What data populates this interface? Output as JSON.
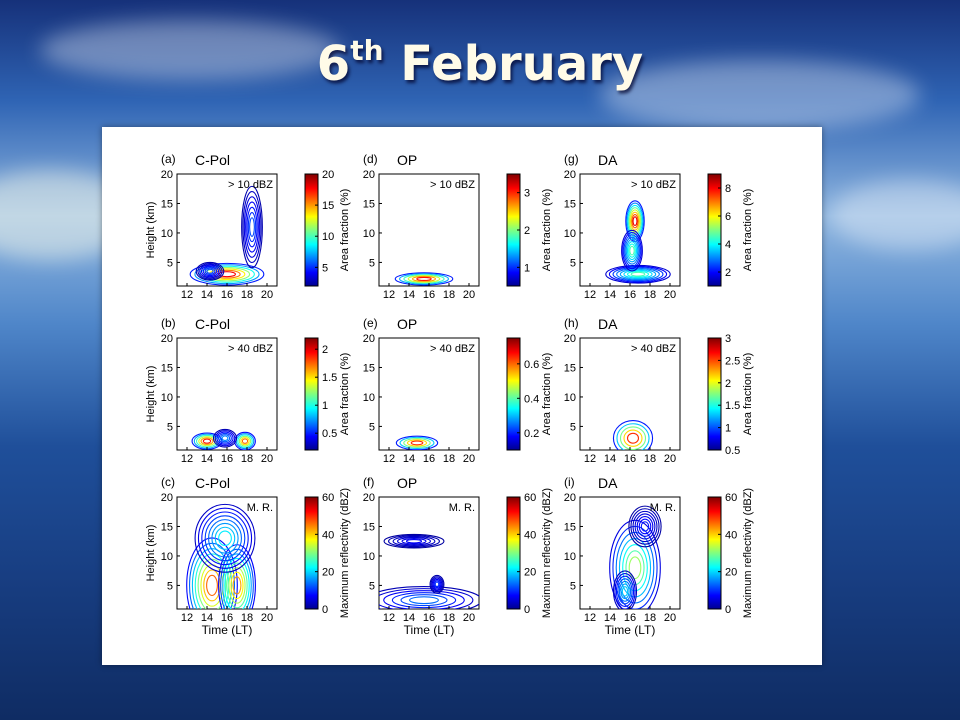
{
  "slide": {
    "title_main": "6",
    "title_sup": "th",
    "title_rest": " February"
  },
  "colors": {
    "background": "#2a5aa8",
    "title": "#fffbe8",
    "panel": "#ffffff",
    "colormap": [
      "#00008f",
      "#0000ff",
      "#0080ff",
      "#00ffff",
      "#80ff80",
      "#ffff00",
      "#ff8000",
      "#ff0000",
      "#800000"
    ]
  },
  "chart_data": [
    {
      "id": "a",
      "type": "contour",
      "label": "(a)",
      "name": "C-Pol",
      "annotation": "> 10 dBZ",
      "ylabel": "Height (km)",
      "xlabel": "",
      "xticks": [
        "12",
        "14",
        "16",
        "18",
        "20"
      ],
      "yticks": [
        "5",
        "10",
        "15",
        "20"
      ],
      "xlim": [
        11,
        21
      ],
      "ylim": [
        1,
        20
      ],
      "colorbar": {
        "label": "Area fraction (%)",
        "min": 2,
        "max": 20,
        "ticks": [
          "5",
          "10",
          "15",
          "20"
        ],
        "tick_values": [
          5,
          10,
          15,
          20
        ]
      },
      "features": [
        {
          "x": 16,
          "y": 3,
          "sx": 3.2,
          "sy": 1.6,
          "amp": 20
        },
        {
          "x": 18.5,
          "y": 11,
          "sx": 0.9,
          "sy": 6,
          "amp": 6
        },
        {
          "x": 14.3,
          "y": 3.5,
          "sx": 1.2,
          "sy": 1.3,
          "amp": 6
        }
      ],
      "levels": 7
    },
    {
      "id": "b",
      "type": "contour",
      "label": "(b)",
      "name": "C-Pol",
      "annotation": "> 40 dBZ",
      "ylabel": "Height (km)",
      "xlabel": "",
      "xticks": [
        "12",
        "14",
        "16",
        "18",
        "20"
      ],
      "yticks": [
        "5",
        "10",
        "15",
        "20"
      ],
      "xlim": [
        11,
        21
      ],
      "ylim": [
        1,
        20
      ],
      "colorbar": {
        "label": "Area fraction (%)",
        "min": 0.2,
        "max": 2.2,
        "ticks": [
          "0.5",
          "1",
          "1.5",
          "2"
        ],
        "tick_values": [
          0.5,
          1,
          1.5,
          2
        ]
      },
      "features": [
        {
          "x": 14,
          "y": 2.5,
          "sx": 1.3,
          "sy": 1.2,
          "amp": 2.2
        },
        {
          "x": 17.8,
          "y": 2.5,
          "sx": 0.9,
          "sy": 1.3,
          "amp": 2.0
        },
        {
          "x": 15.8,
          "y": 3,
          "sx": 1.0,
          "sy": 1.3,
          "amp": 0.8
        }
      ],
      "levels": 6
    },
    {
      "id": "c",
      "type": "contour",
      "label": "(c)",
      "name": "C-Pol",
      "annotation": "M. R.",
      "ylabel": "Height (km)",
      "xlabel": "Time (LT)",
      "xticks": [
        "12",
        "14",
        "16",
        "18",
        "20"
      ],
      "yticks": [
        "5",
        "10",
        "15",
        "20"
      ],
      "xlim": [
        11,
        21
      ],
      "ylim": [
        1,
        20
      ],
      "colorbar": {
        "label": "Maximum reflectivity (dBZ)",
        "min": 0,
        "max": 60,
        "ticks": [
          "0",
          "20",
          "40",
          "60"
        ],
        "tick_values": [
          0,
          20,
          40,
          60
        ]
      },
      "features": [
        {
          "x": 14.5,
          "y": 5,
          "sx": 2.2,
          "sy": 7,
          "amp": 52
        },
        {
          "x": 17,
          "y": 5,
          "sx": 1.6,
          "sy": 6,
          "amp": 48
        },
        {
          "x": 15.8,
          "y": 13,
          "sx": 2.6,
          "sy": 5,
          "amp": 24
        }
      ],
      "levels": 8
    },
    {
      "id": "d",
      "type": "contour",
      "label": "(d)",
      "name": "OP",
      "annotation": "> 10 dBZ",
      "ylabel": "",
      "xlabel": "",
      "xticks": [
        "12",
        "14",
        "16",
        "18",
        "20"
      ],
      "yticks": [
        "5",
        "10",
        "15",
        "20"
      ],
      "xlim": [
        11,
        21
      ],
      "ylim": [
        1,
        20
      ],
      "colorbar": {
        "label": "Area fraction (%)",
        "min": 0.5,
        "max": 3.5,
        "ticks": [
          "1",
          "2",
          "3"
        ],
        "tick_values": [
          1,
          2,
          3
        ]
      },
      "features": [
        {
          "x": 15.5,
          "y": 2.2,
          "sx": 2.5,
          "sy": 0.9,
          "amp": 3.5
        }
      ],
      "levels": 6
    },
    {
      "id": "e",
      "type": "contour",
      "label": "(e)",
      "name": "OP",
      "annotation": "> 40 dBZ",
      "ylabel": "",
      "xlabel": "",
      "xticks": [
        "12",
        "14",
        "16",
        "18",
        "20"
      ],
      "yticks": [
        "5",
        "10",
        "15",
        "20"
      ],
      "xlim": [
        11,
        21
      ],
      "ylim": [
        1,
        20
      ],
      "colorbar": {
        "label": "Area fraction (%)",
        "min": 0.1,
        "max": 0.75,
        "ticks": [
          "0.2",
          "0.4",
          "0.6"
        ],
        "tick_values": [
          0.2,
          0.4,
          0.6
        ]
      },
      "features": [
        {
          "x": 14.8,
          "y": 2.2,
          "sx": 1.8,
          "sy": 1.0,
          "amp": 0.75
        }
      ],
      "levels": 5
    },
    {
      "id": "f",
      "type": "contour",
      "label": "(f)",
      "name": "OP",
      "annotation": "M. R.",
      "ylabel": "",
      "xlabel": "Time (LT)",
      "xticks": [
        "12",
        "14",
        "16",
        "18",
        "20"
      ],
      "yticks": [
        "5",
        "10",
        "15",
        "20"
      ],
      "xlim": [
        11,
        21
      ],
      "ylim": [
        1,
        20
      ],
      "colorbar": {
        "label": "Maximum reflectivity (dBZ)",
        "min": 0,
        "max": 60,
        "ticks": [
          "0",
          "20",
          "40",
          "60"
        ],
        "tick_values": [
          0,
          20,
          40,
          60
        ]
      },
      "features": [
        {
          "x": 15.5,
          "y": 2.5,
          "sx": 5,
          "sy": 2.0,
          "amp": 16
        },
        {
          "x": 16.8,
          "y": 5.2,
          "sx": 0.6,
          "sy": 1.3,
          "amp": 12
        },
        {
          "x": 14.5,
          "y": 12.5,
          "sx": 2.6,
          "sy": 1.0,
          "amp": 8
        }
      ],
      "levels": 6
    },
    {
      "id": "g",
      "type": "contour",
      "label": "(g)",
      "name": "DA",
      "annotation": "> 10 dBZ",
      "ylabel": "",
      "xlabel": "",
      "xticks": [
        "12",
        "14",
        "16",
        "18",
        "20"
      ],
      "yticks": [
        "5",
        "10",
        "15",
        "20"
      ],
      "xlim": [
        11,
        21
      ],
      "ylim": [
        1,
        20
      ],
      "colorbar": {
        "label": "Area fraction (%)",
        "min": 1,
        "max": 9,
        "ticks": [
          "2",
          "4",
          "6",
          "8"
        ],
        "tick_values": [
          2,
          4,
          6,
          8
        ]
      },
      "features": [
        {
          "x": 16.5,
          "y": 12,
          "sx": 0.8,
          "sy": 3,
          "amp": 9
        },
        {
          "x": 16.8,
          "y": 3,
          "sx": 2.8,
          "sy": 1.3,
          "amp": 5
        },
        {
          "x": 16.2,
          "y": 7,
          "sx": 0.9,
          "sy": 3,
          "amp": 5
        }
      ],
      "levels": 8
    },
    {
      "id": "h",
      "type": "contour",
      "label": "(h)",
      "name": "DA",
      "annotation": "> 40 dBZ",
      "ylabel": "",
      "xlabel": "",
      "xticks": [
        "12",
        "14",
        "16",
        "18",
        "20"
      ],
      "yticks": [
        "5",
        "10",
        "15",
        "20"
      ],
      "xlim": [
        11,
        21
      ],
      "ylim": [
        1,
        20
      ],
      "colorbar": {
        "label": "Area fraction (%)",
        "min": 0.5,
        "max": 3,
        "ticks": [
          "0.5",
          "1",
          "1.5",
          "2",
          "2.5",
          "3"
        ],
        "tick_values": [
          0.5,
          1,
          1.5,
          2,
          2.5,
          3
        ]
      },
      "features": [
        {
          "x": 16.3,
          "y": 3,
          "sx": 1.7,
          "sy": 2.6,
          "amp": 3
        }
      ],
      "levels": 5
    },
    {
      "id": "i",
      "type": "contour",
      "label": "(i)",
      "name": "DA",
      "annotation": "M. R.",
      "ylabel": "",
      "xlabel": "Time (LT)",
      "xticks": [
        "12",
        "14",
        "16",
        "18",
        "20"
      ],
      "yticks": [
        "5",
        "10",
        "15",
        "20"
      ],
      "xlim": [
        11,
        21
      ],
      "ylim": [
        1,
        20
      ],
      "colorbar": {
        "label": "Maximum reflectivity (dBZ)",
        "min": 0,
        "max": 60,
        "ticks": [
          "0",
          "20",
          "40",
          "60"
        ],
        "tick_values": [
          0,
          20,
          40,
          60
        ]
      },
      "features": [
        {
          "x": 16.5,
          "y": 8,
          "sx": 2.2,
          "sy": 7,
          "amp": 36
        },
        {
          "x": 15.5,
          "y": 4,
          "sx": 1.0,
          "sy": 3,
          "amp": 22
        },
        {
          "x": 17.5,
          "y": 15,
          "sx": 1.4,
          "sy": 3,
          "amp": 10
        }
      ],
      "levels": 7
    }
  ]
}
